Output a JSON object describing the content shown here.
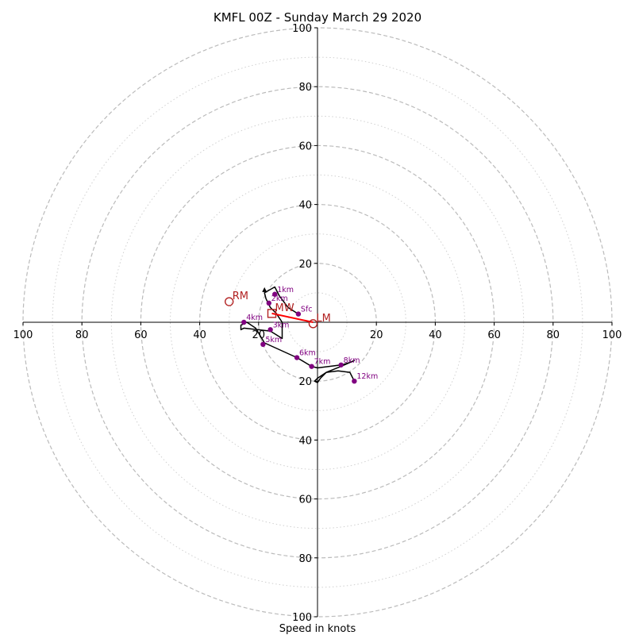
{
  "chart_data": {
    "type": "scatter",
    "title": "KMFL 00Z - Sunday March 29 2020",
    "xlabel": "Speed in knots",
    "ylabel": "",
    "xlim": [
      -100,
      100
    ],
    "ylim": [
      -100,
      100
    ],
    "x_ticks": [
      "100",
      "80",
      "60",
      "40",
      "20",
      "20",
      "40",
      "60",
      "80",
      "100"
    ],
    "y_ticks": [
      "100",
      "80",
      "60",
      "40",
      "20",
      "20",
      "40",
      "60",
      "80",
      "100"
    ],
    "x_tick_values": [
      -100,
      -80,
      -60,
      -40,
      -20,
      20,
      40,
      60,
      80,
      100
    ],
    "y_tick_values": [
      100,
      80,
      60,
      40,
      20,
      -20,
      -40,
      -60,
      -80,
      -100
    ],
    "rings_dashed": [
      20,
      40,
      60,
      80,
      100
    ],
    "rings_dotted": [
      10,
      30,
      50,
      70,
      90
    ],
    "grid": true,
    "colors": {
      "trace": "#000000",
      "levels": "#800080",
      "motion": "#b22222",
      "shear": "#ff0000",
      "grid": "#bbbbbb"
    },
    "trace": [
      [
        -6.5,
        2.8
      ],
      [
        -10,
        5
      ],
      [
        -13,
        9
      ],
      [
        -14.5,
        12
      ],
      [
        -18,
        10
      ],
      [
        -17.5,
        8
      ],
      [
        -16,
        5
      ],
      [
        -14,
        3
      ],
      [
        -12,
        0
      ],
      [
        -12,
        -5.5
      ],
      [
        -16,
        -3
      ],
      [
        -25,
        -2
      ],
      [
        -26,
        -2.5
      ],
      [
        -26,
        -1
      ],
      [
        -24,
        0
      ],
      [
        -21,
        -2
      ],
      [
        -18,
        -7
      ],
      [
        -7,
        -12
      ],
      [
        -2,
        -15
      ],
      [
        0,
        -15.5
      ],
      [
        4,
        -15
      ],
      [
        8,
        -14.5
      ],
      [
        10,
        -14
      ],
      [
        12.5,
        -13
      ],
      [
        8,
        -15
      ],
      [
        3,
        -17
      ],
      [
        0,
        -19
      ],
      [
        -1,
        -20
      ],
      [
        0,
        -20.5
      ],
      [
        1,
        -19
      ],
      [
        3,
        -17
      ],
      [
        7,
        -16.5
      ],
      [
        11,
        -17
      ],
      [
        12.5,
        -20
      ]
    ],
    "levels": [
      {
        "label": "Sfc",
        "x": -6.5,
        "y": 2.8
      },
      {
        "label": "1km",
        "x": -14.5,
        "y": 9.5
      },
      {
        "label": "2km",
        "x": -16.5,
        "y": 6.5
      },
      {
        "label": "3km",
        "x": -16,
        "y": -2.5
      },
      {
        "label": "4km",
        "x": -25,
        "y": 0
      },
      {
        "label": "5km",
        "x": -18.5,
        "y": -7.5
      },
      {
        "label": "6km",
        "x": -7,
        "y": -12
      },
      {
        "label": "7km",
        "x": -2,
        "y": -15
      },
      {
        "label": "8km",
        "x": 8,
        "y": -14.5
      },
      {
        "label": "12km",
        "x": 12.5,
        "y": -20
      }
    ],
    "storm_motion": [
      {
        "label": "RM",
        "x": -30,
        "y": 7
      },
      {
        "label": "LM",
        "x": -1.5,
        "y": -0.5
      },
      {
        "label": "MW",
        "x": -15.5,
        "y": 3
      }
    ],
    "shear_vector": [
      [
        -15.5,
        3
      ],
      [
        -1.5,
        0
      ]
    ]
  }
}
